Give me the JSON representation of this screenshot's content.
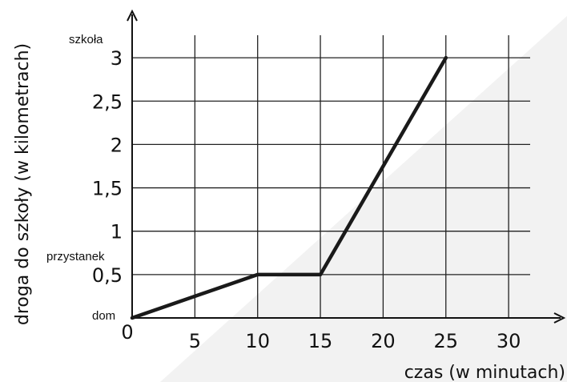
{
  "chart_data": {
    "type": "line",
    "xlabel": "czas (w minutach)",
    "ylabel": "droga do szkoły (w kilometrach)",
    "x_ticks": [
      "0",
      "5",
      "10",
      "15",
      "20",
      "25",
      "30"
    ],
    "y_ticks": [
      "0,5",
      "1",
      "1,5",
      "2",
      "2,5",
      "3"
    ],
    "xlim": [
      0,
      32
    ],
    "ylim": [
      0,
      3.2
    ],
    "grid": true,
    "annotations": {
      "home": "dom",
      "stop": "przystanek",
      "school": "szkoła"
    },
    "series": [
      {
        "x": [
          0,
          10,
          15,
          25
        ],
        "y": [
          0,
          0.5,
          0.5,
          3
        ]
      }
    ],
    "colors": {
      "line": "#1a1a1a",
      "grid": "#222222",
      "shade": "#f2f2f2"
    }
  }
}
